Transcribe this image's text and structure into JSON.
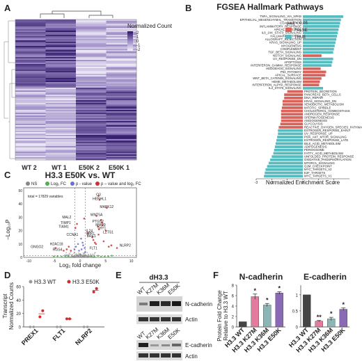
{
  "panels": {
    "A": {
      "label": "A",
      "legend_title": "Normalized Count",
      "legend_ticks": [
        "2",
        "1",
        "0",
        "-1",
        "-2"
      ],
      "columns": [
        "WT 2",
        "WT 1",
        "E50K 2",
        "E50K 1"
      ]
    },
    "B": {
      "label": "B",
      "title": "FGSEA Hallmark Pathways",
      "legend_title": "padj < 0.05",
      "legend_items": [
        {
          "label": "FALSE",
          "color": "#d9625a"
        },
        {
          "label": "TRUE",
          "color": "#55bcc0"
        }
      ],
      "xlabel": "Normalized Enrichment Score",
      "xticks": [
        "-3",
        "-2",
        "-1",
        "0",
        "1",
        "2"
      ]
    },
    "C": {
      "label": "C",
      "title": "H3.3 E50K vs. WT",
      "legend": [
        "NS",
        "Log₂ FC",
        "p - value",
        "p – value and log₂ FC"
      ],
      "legend_colors": [
        "#888888",
        "#4fae4f",
        "#6f6fd0",
        "#d03030"
      ],
      "total_note": "total = 17829 variables",
      "ylabel": "–Log₁₀P",
      "xlabel": "Log₂ fold change",
      "xticks": [
        "-10",
        "-5",
        "0",
        "5",
        "10"
      ],
      "yticks": [
        "0",
        "10",
        "20",
        "30",
        "40",
        "50"
      ],
      "gene_labels": [
        "O3",
        "HERHL1",
        "MAPK12",
        "WNT5A",
        "MAL2",
        "PTGS2",
        "MMP9",
        "TIMP1",
        "THY1",
        "TIAM1",
        "IL24",
        "SPP1",
        "LZTS1",
        "CCNA1",
        "BRE1",
        "H2AC18",
        "GNGO2",
        "NLRP2",
        "RGS4",
        "FLT1"
      ]
    },
    "D": {
      "label": "D",
      "ylabel_1": "Transcript",
      "ylabel_2": "Normalized Counts",
      "yticks": [
        "0",
        "20",
        "40",
        "60"
      ],
      "legend": [
        "H3.3 WT",
        "H3.3 E50K"
      ],
      "legend_colors": [
        "#9a9a9a",
        "#d42a2a"
      ]
    },
    "E": {
      "label": "E",
      "header": "dH3.3",
      "lanes": [
        "WT",
        "K27M",
        "K36M",
        "E50K"
      ],
      "blots": [
        "N-cadherin",
        "Actin",
        "E-cadherin",
        "Actin"
      ]
    },
    "F": {
      "label": "F",
      "ylabel_1": "Protein Fold Change",
      "ylabel_2": "Relative to H3.3 WT"
    }
  },
  "chart_data": [
    {
      "type": "heatmap",
      "title": "",
      "columns": [
        "WT 2",
        "WT 1",
        "E50K 2",
        "E50K 1"
      ],
      "legend_title": "Normalized Count",
      "scale_range": [
        -2,
        2
      ]
    },
    {
      "type": "bar",
      "orientation": "horizontal",
      "title": "FGSEA Hallmark Pathways",
      "xlabel": "Normalized Enrichment Score",
      "xlim": [
        -3,
        3
      ],
      "categories": [
        "TNFA_SIGNALING_VIA_NFKB",
        "EPITHELIAL_MESENCHYMAL_TRANSITION",
        "COAGULATION",
        "INFLAMMATORY_RESPONSE",
        "APICAL_JUNCTION",
        "IL6_JAK_STAT3_SIGNALING",
        "HALLMARK_HYPOXIA",
        "ALLOGRAFT_REJECTION",
        "KRAS_SIGNALING_UP",
        "MYOGENESIS",
        "COMPLEMENT",
        "TGF_BETA_SIGNALING",
        "NOTCH_SIGNALING",
        "UV_RESPONSE_DN",
        "APOPTOSIS",
        "INTERFERON_GAMMA_RESPONSE",
        "HEDGEHOG_SIGNALING",
        "P53_PATHWAY",
        "APICAL_SURFACE",
        "WNT_BETA_CATENIN_SIGNALING",
        "HEME_METABOLISM",
        "INTERFERON_ALPHA_RESPONSE",
        "IL2_STAT5_SIGNALING",
        "PROTEIN_SECRETION",
        "PANCREAS_BETA_CELLS",
        "DNA_REPAIR",
        "KRAS_SIGNALING_DN",
        "XENOBIOTIC_METABOLISM",
        "MITOTIC_SPINDLE",
        "CHOLESTEROL_HOMEOSTASIS",
        "ANDROGEN_RESPONSE",
        "SPERMATOGENESIS",
        "ANGIOGENESIS",
        "GLYCOLYSIS",
        "REACTIVE_OXYGEN_SPECIES_PATHWAY",
        "ESTROGEN_RESPONSE_EARLY",
        "UV_RESPONSE_UP",
        "PI3K_AKT_MTOR_SIGNALING",
        "ESTROGEN_RESPONSE_LATE",
        "BILE_ACID_METABOLISM",
        "ADIPOGENESIS",
        "PEROXISOME",
        "FATTY_ACID_METABOLISM",
        "UNFOLDED_PROTEIN_RESPONSE",
        "OXIDATIVE_PHOSPHORYLATION",
        "MTORC1_SIGNALING",
        "G2M_CHECKPOINT",
        "MYC_TARGETS_V2",
        "E2F_TARGETS",
        "MYC_TARGETS_V1"
      ],
      "values": [
        2.6,
        2.45,
        2.4,
        2.35,
        2.3,
        2.25,
        2.2,
        2.15,
        2.1,
        2.05,
        2.0,
        1.95,
        1.2,
        1.95,
        1.9,
        1.85,
        1.15,
        1.5,
        1.45,
        1.2,
        1.1,
        1.05,
        1.3,
        -1.0,
        -1.2,
        -1.2,
        -1.3,
        -1.3,
        -1.35,
        -1.4,
        -1.4,
        -1.4,
        -1.4,
        -1.45,
        -1.55,
        -1.6,
        -1.6,
        -1.65,
        -1.7,
        -1.75,
        -1.8,
        -1.85,
        -1.9,
        -2.0,
        -2.1,
        -2.2,
        -2.3,
        -2.4,
        -2.45,
        -2.5
      ],
      "significant": [
        true,
        true,
        true,
        true,
        true,
        true,
        true,
        true,
        true,
        true,
        true,
        true,
        false,
        true,
        true,
        true,
        false,
        false,
        false,
        false,
        false,
        false,
        true,
        false,
        false,
        false,
        false,
        false,
        false,
        false,
        false,
        false,
        false,
        false,
        false,
        true,
        true,
        true,
        true,
        true,
        true,
        true,
        true,
        true,
        true,
        true,
        true,
        true,
        true,
        true
      ],
      "legend": {
        "title": "padj < 0.05",
        "FALSE": "#d9625a",
        "TRUE": "#55bcc0"
      }
    },
    {
      "type": "scatter",
      "title": "H3.3 E50K vs. WT",
      "xlabel": "Log₂ fold change",
      "ylabel": "–Log₁₀P",
      "xlim": [
        -11,
        11
      ],
      "ylim": [
        0,
        52
      ],
      "series": [
        {
          "name": "p – value and log₂ FC",
          "color": "#d03030",
          "x": [
            3.6,
            3.8,
            5.2,
            3.2,
            0.8,
            4.1,
            4.3,
            -0.6,
            4.4,
            -0.9,
            3.5,
            3.7,
            5.0,
            1.5,
            3.6,
            -2.2,
            -4.8,
            7.2,
            -1.8,
            4.6,
            6.1,
            5.6,
            2.6,
            2.9,
            -2.6,
            -3.2,
            3.1,
            2.4
          ],
          "y": [
            46,
            43,
            37,
            31,
            29,
            28,
            26,
            25,
            24,
            22,
            23,
            21,
            20,
            18,
            17,
            8,
            7,
            7,
            5,
            12,
            9,
            8,
            13,
            11,
            6,
            5,
            10,
            15
          ]
        },
        {
          "name": "p - value",
          "color": "#6f6fd0",
          "x": [
            0.2,
            -0.4,
            0.6,
            -0.8,
            0.9,
            0.3,
            -0.2,
            1.0,
            -1.1,
            0.5
          ],
          "y": [
            14,
            10,
            9,
            8,
            7,
            6,
            5,
            4,
            6,
            11
          ]
        },
        {
          "name": "Log₂ FC",
          "color": "#4fae4f",
          "x": [
            2.2,
            3.5,
            4.8,
            -2.3,
            -3.6,
            6.2,
            -5.1,
            2.8,
            -2.9,
            4.1,
            -4.4,
            5.5
          ],
          "y": [
            0.8,
            1.2,
            0.6,
            0.9,
            0.5,
            1.3,
            0.7,
            0.4,
            1.1,
            0.5,
            1.0,
            0.9
          ]
        },
        {
          "name": "NS",
          "color": "#888888",
          "x": [
            0.1,
            -0.3,
            0.5,
            -0.7,
            0.8,
            -1.2,
            1.3,
            0.2,
            -0.5,
            0.9,
            -1.5,
            1.6,
            0.0,
            -0.9
          ],
          "y": [
            0.5,
            1.0,
            0.8,
            1.3,
            0.4,
            0.9,
            1.1,
            1.8,
            1.6,
            1.5,
            0.6,
            0.5,
            2.1,
            0.3
          ]
        }
      ],
      "annotations": [
        "O3",
        "HERHL1",
        "MAPK12",
        "WNT5A",
        "MAL2",
        "PTGS2",
        "MMP9",
        "TIMP1",
        "THY1",
        "TIAM1",
        "IL24",
        "SPP1",
        "LZTS1",
        "CCNA1",
        "BRE1",
        "H2AC18",
        "GNGO2",
        "NLRP2",
        "RGS4",
        "FLT1"
      ]
    },
    {
      "type": "scatter",
      "title": "",
      "categories": [
        "PREX1",
        "FLT1",
        "NLRP2"
      ],
      "ylim": [
        0,
        60
      ],
      "series": [
        {
          "name": "H3.3 WT",
          "color": "#9a9a9a",
          "values": [
            [
              0,
              0
            ],
            [
              0,
              0
            ],
            [
              0,
              0
            ]
          ]
        },
        {
          "name": "H3.3 E50K",
          "color": "#d42a2a",
          "values": [
            [
              15,
              24
            ],
            [
              12,
              12
            ],
            [
              52,
              57
            ]
          ]
        }
      ]
    },
    {
      "type": "bar",
      "title": "N-cadherin",
      "categories": [
        "H3.3 WT",
        "H3.3 K27M",
        "H3.3 K36M",
        "H3.3 E50K"
      ],
      "values": [
        1.0,
        5.8,
        4.2,
        6.5
      ],
      "errors": [
        0,
        0.5,
        0.3,
        0.25
      ],
      "significance": [
        "",
        "*",
        "*",
        "*"
      ],
      "ylim": [
        0,
        8
      ],
      "colors": [
        "#444444",
        "#e27b9d",
        "#8cb6b5",
        "#8a6ab5"
      ]
    },
    {
      "type": "bar",
      "title": "E-cadherin",
      "categories": [
        "H3.3 WT",
        "H3.3 K27M",
        "H3.3 K36M",
        "H3.3 E50K"
      ],
      "values": [
        1.0,
        0.18,
        0.25,
        0.55
      ],
      "errors": [
        0,
        0.02,
        0.05,
        0.04
      ],
      "significance": [
        "",
        "**",
        "*",
        "*"
      ],
      "ylim": [
        0,
        1.3
      ],
      "colors": [
        "#444444",
        "#e27b9d",
        "#8cb6b5",
        "#8a6ab5"
      ]
    }
  ]
}
